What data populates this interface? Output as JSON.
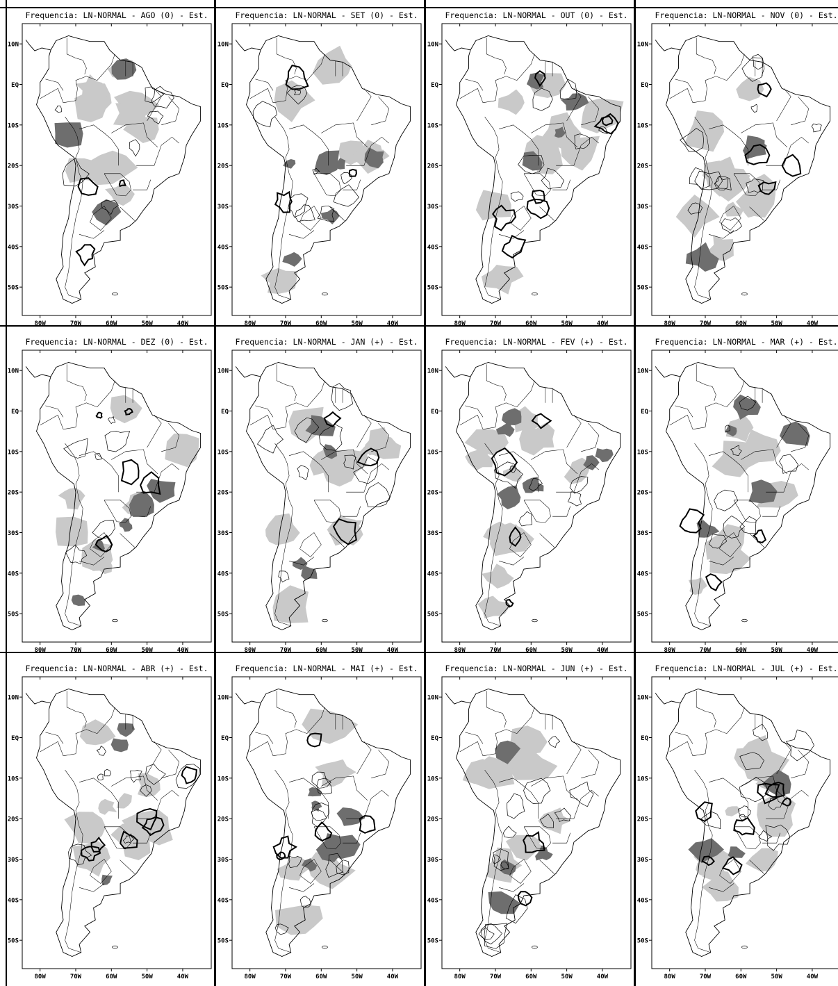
{
  "colors": {
    "strong": "#6e6e6e",
    "light": "#c9c9c9",
    "line": "#000000",
    "frame": "#000000"
  },
  "lat_labels": [
    "10N",
    "EQ",
    "10S",
    "20S",
    "30S",
    "40S",
    "50S"
  ],
  "lon_labels": [
    "80W",
    "70W",
    "60W",
    "50W",
    "40W"
  ],
  "panels": [
    {
      "title": "Frequencia: LN-NORMAL - AGO (0) - Est."
    },
    {
      "title": "Frequencia: LN-NORMAL - SET (0) - Est."
    },
    {
      "title": "Frequencia: LN-NORMAL - OUT (0) - Est."
    },
    {
      "title": "Frequencia: LN-NORMAL - NOV (0) - Est."
    },
    {
      "title": "Frequencia: LN-NORMAL - DEZ (0) - Est."
    },
    {
      "title": "Frequencia: LN-NORMAL - JAN (+) - Est."
    },
    {
      "title": "Frequencia: LN-NORMAL - FEV (+) - Est."
    },
    {
      "title": "Frequencia: LN-NORMAL - MAR (+) - Est."
    },
    {
      "title": "Frequencia: LN-NORMAL - ABR (+) - Est."
    },
    {
      "title": "Frequencia: LN-NORMAL - MAI (+) - Est."
    },
    {
      "title": "Frequencia: LN-NORMAL - JUN (+) - Est."
    },
    {
      "title": "Frequencia: LN-NORMAL - JUL (+) - Est."
    }
  ]
}
